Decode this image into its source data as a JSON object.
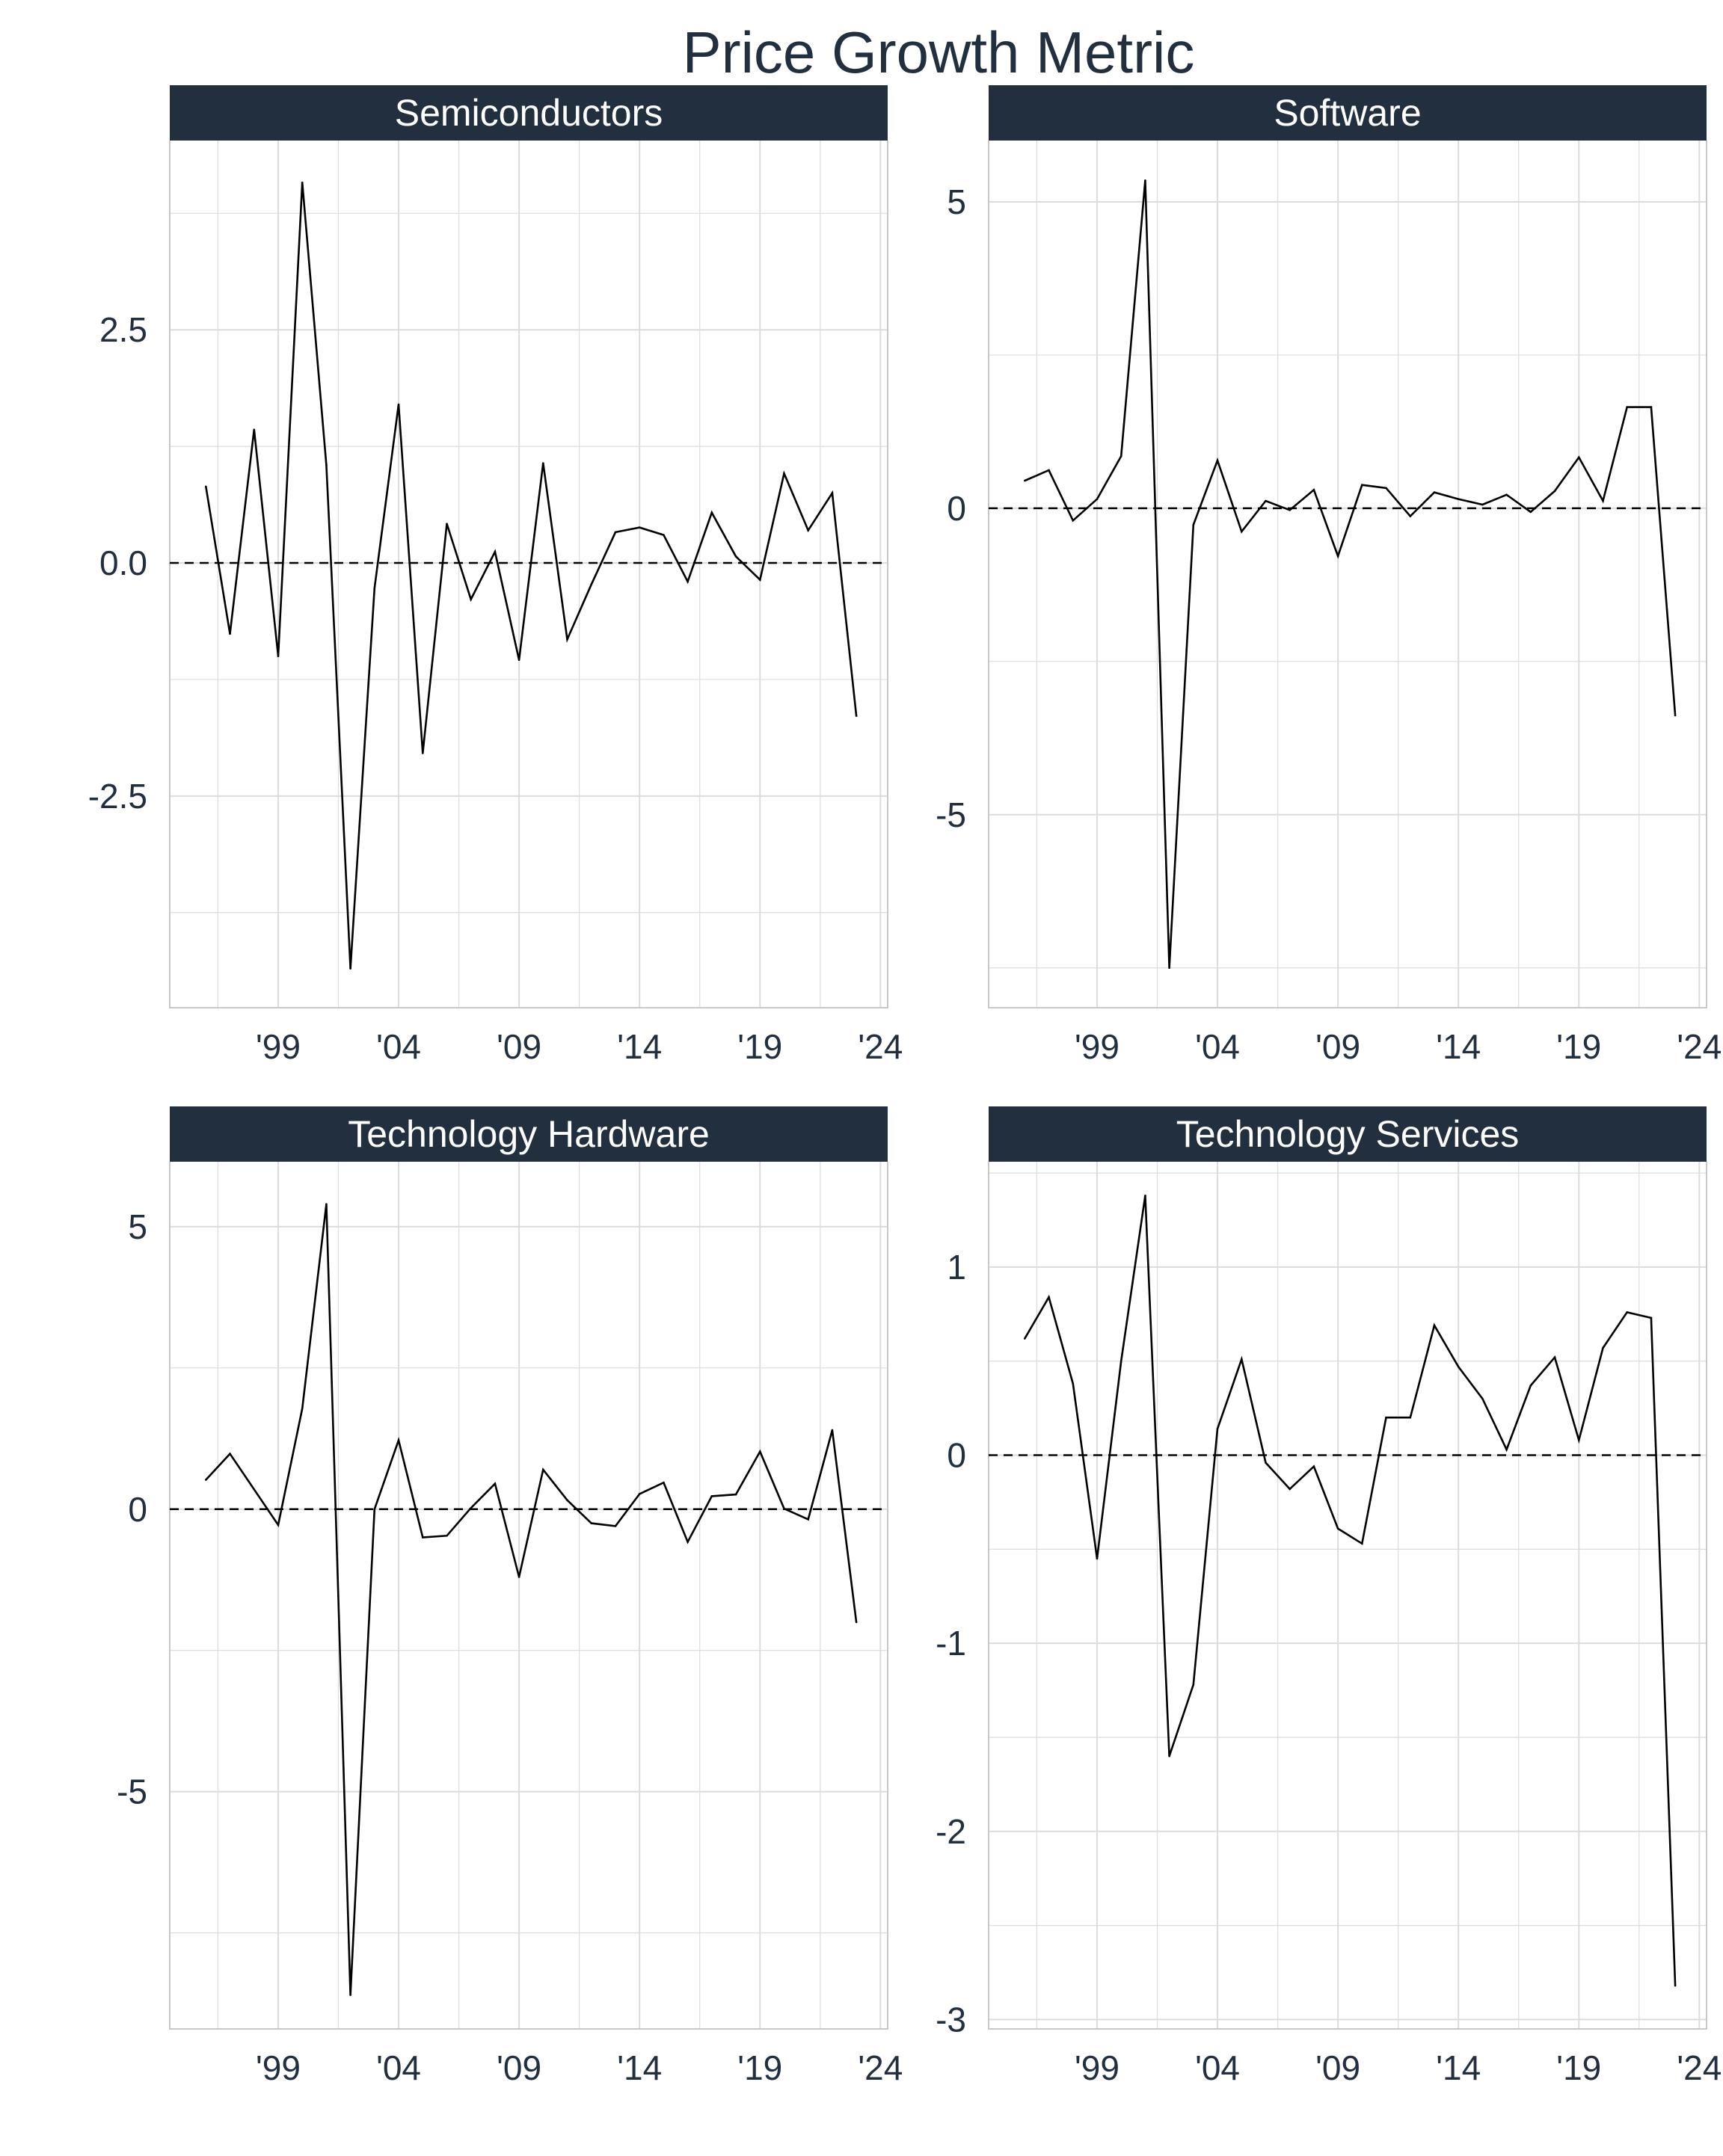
{
  "title": "Price Growth Metric",
  "colors": {
    "strip": "#222f3e",
    "text": "#222f3e",
    "grid": "#dcdcdc",
    "line": "#000000"
  },
  "chart_data": [
    {
      "type": "line",
      "panel_title": "Semiconductors",
      "x": [
        1996,
        1997,
        1998,
        1999,
        2000,
        2001,
        2002,
        2003,
        2004,
        2005,
        2006,
        2007,
        2008,
        2009,
        2010,
        2011,
        2012,
        2013,
        2014,
        2015,
        2016,
        2017,
        2018,
        2019,
        2020,
        2021,
        2022,
        2023
      ],
      "values": [
        0.82,
        -0.76,
        1.43,
        -1.0,
        4.08,
        1.05,
        -4.35,
        -0.27,
        1.7,
        -2.04,
        0.42,
        -0.39,
        0.12,
        -1.04,
        1.07,
        -0.82,
        -0.23,
        0.33,
        0.38,
        0.3,
        -0.2,
        0.54,
        0.07,
        -0.18,
        0.96,
        0.35,
        0.75,
        -1.64
      ],
      "xlim": [
        1994.5,
        2024.3
      ],
      "ylim": [
        -4.77,
        4.53
      ],
      "yticks": [
        -2.5,
        0,
        2.5
      ],
      "ytick_labels": [
        "-2.5",
        "0.0",
        "2.5"
      ],
      "xticks": [
        1999,
        2004,
        2009,
        2014,
        2019,
        2024
      ],
      "xtick_labels": [
        "'99",
        "'04",
        "'09",
        "'14",
        "'19",
        "'24"
      ],
      "reference_line": 0
    },
    {
      "type": "line",
      "panel_title": "Software",
      "x": [
        1996,
        1997,
        1998,
        1999,
        2000,
        2001,
        2002,
        2003,
        2004,
        2005,
        2006,
        2007,
        2008,
        2009,
        2010,
        2011,
        2012,
        2013,
        2014,
        2015,
        2016,
        2017,
        2018,
        2019,
        2020,
        2021,
        2022,
        2023
      ],
      "values": [
        0.45,
        0.62,
        -0.2,
        0.15,
        0.85,
        5.35,
        -7.5,
        -0.27,
        0.78,
        -0.38,
        0.12,
        -0.03,
        0.3,
        -0.78,
        0.38,
        0.33,
        -0.13,
        0.26,
        0.15,
        0.06,
        0.22,
        -0.06,
        0.28,
        0.83,
        0.12,
        1.65,
        1.65,
        -3.38
      ],
      "xlim": [
        1994.5,
        2024.3
      ],
      "ylim": [
        -8.15,
        6.0
      ],
      "yticks": [
        -5,
        0,
        5
      ],
      "ytick_labels": [
        "-5",
        "0",
        "5"
      ],
      "xticks": [
        1999,
        2004,
        2009,
        2014,
        2019,
        2024
      ],
      "xtick_labels": [
        "'99",
        "'04",
        "'09",
        "'14",
        "'19",
        "'24"
      ],
      "reference_line": 0
    },
    {
      "type": "line",
      "panel_title": "Technology Hardware",
      "x": [
        1996,
        1997,
        1998,
        1999,
        2000,
        2001,
        2002,
        2003,
        2004,
        2005,
        2006,
        2007,
        2008,
        2009,
        2010,
        2011,
        2012,
        2013,
        2014,
        2015,
        2016,
        2017,
        2018,
        2019,
        2020,
        2021,
        2022,
        2023
      ],
      "values": [
        0.52,
        0.98,
        0.35,
        -0.28,
        1.78,
        5.4,
        -8.6,
        0.0,
        1.22,
        -0.5,
        -0.47,
        0.02,
        0.45,
        -1.2,
        0.7,
        0.16,
        -0.25,
        -0.3,
        0.27,
        0.47,
        -0.58,
        0.23,
        0.26,
        1.02,
        0.01,
        -0.18,
        1.4,
        -2.0
      ],
      "xlim": [
        1994.5,
        2024.3
      ],
      "ylim": [
        -9.2,
        6.15
      ],
      "yticks": [
        -5,
        0,
        5
      ],
      "ytick_labels": [
        "-5",
        "0",
        "5"
      ],
      "xticks": [
        1999,
        2004,
        2009,
        2014,
        2019,
        2024
      ],
      "xtick_labels": [
        "'99",
        "'04",
        "'09",
        "'14",
        "'19",
        "'24"
      ],
      "reference_line": 0
    },
    {
      "type": "line",
      "panel_title": "Technology Services",
      "x": [
        1996,
        1997,
        1998,
        1999,
        2000,
        2001,
        2002,
        2003,
        2004,
        2005,
        2006,
        2007,
        2008,
        2009,
        2010,
        2011,
        2012,
        2013,
        2014,
        2015,
        2016,
        2017,
        2018,
        2019,
        2020,
        2021,
        2022,
        2023
      ],
      "values": [
        0.62,
        0.84,
        0.38,
        -0.55,
        0.5,
        1.38,
        -1.6,
        -1.22,
        0.14,
        0.51,
        -0.04,
        -0.18,
        -0.06,
        -0.39,
        -0.47,
        0.2,
        0.2,
        0.69,
        0.47,
        0.3,
        0.03,
        0.37,
        0.52,
        0.08,
        0.57,
        0.76,
        0.73,
        -2.82
      ],
      "xlim": [
        1994.5,
        2024.3
      ],
      "ylim": [
        -3.05,
        1.56
      ],
      "yticks": [
        -3,
        -2,
        -1,
        0,
        1
      ],
      "ytick_labels": [
        "-3",
        "-2",
        "-1",
        "0",
        "1"
      ],
      "xticks": [
        1999,
        2004,
        2009,
        2014,
        2019,
        2024
      ],
      "xtick_labels": [
        "'99",
        "'04",
        "'09",
        "'14",
        "'19",
        "'24"
      ],
      "reference_line": 0
    }
  ]
}
